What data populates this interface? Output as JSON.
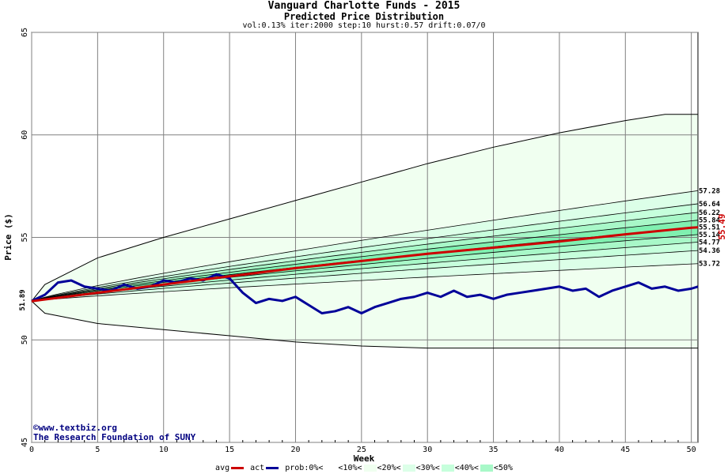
{
  "header": {
    "title": "Vanguard Charlotte Funds - 2015",
    "subtitle": "Predicted Price Distribution",
    "params": "vol:0.13% iter:2000 step:10 hurst:0.57 drift:0.07/0"
  },
  "credits": {
    "line1": "©www.textbiz.org",
    "line2": "The Research Foundation of SUNY"
  },
  "legend": {
    "avg": "avg",
    "act": "act",
    "prob": "prob:",
    "bands": [
      "0%<",
      "<10%<",
      "<20%<",
      "<30%<",
      "<40%<",
      "<50%"
    ]
  },
  "colors": {
    "avg": "#cc0000",
    "act": "#000099",
    "bands": [
      "#ffffff",
      "#f0fff0",
      "#dcffe8",
      "#c6ffdc",
      "#a8f8c8",
      "#80f0b0"
    ],
    "grid": "#808080"
  },
  "chart_data": {
    "type": "line",
    "title": "Vanguard Charlotte Funds - 2015",
    "subtitle": "Predicted Price Distribution",
    "xlabel": "Week",
    "ylabel": "Price ($)",
    "xlim": [
      0,
      50.5
    ],
    "ylim": [
      45,
      65
    ],
    "x_ticks": [
      0,
      5,
      10,
      15,
      20,
      25,
      30,
      35,
      40,
      45,
      50
    ],
    "y_ticks": [
      45,
      50,
      55,
      60,
      65
    ],
    "grid": true,
    "start_value": "51.89",
    "end_avg_value": "55.49",
    "envelope": {
      "x": [
        0,
        1,
        5,
        10,
        15,
        20,
        25,
        30,
        35,
        40,
        45,
        48,
        50.5
      ],
      "upper": [
        51.89,
        52.7,
        54.0,
        55.0,
        55.9,
        56.8,
        57.7,
        58.6,
        59.4,
        60.1,
        60.7,
        61.0,
        61.0
      ],
      "lower": [
        51.89,
        51.3,
        50.8,
        50.5,
        50.2,
        49.9,
        49.7,
        49.6,
        49.6,
        49.6,
        49.6,
        49.6,
        49.6
      ]
    },
    "percentile_end_labels": [
      "57.28",
      "56.64",
      "56.22",
      "55.84",
      "55.51",
      "55.14",
      "54.77",
      "54.36",
      "53.72"
    ],
    "percentile_curves": [
      {
        "end": 57.28
      },
      {
        "end": 56.64
      },
      {
        "end": 56.22
      },
      {
        "end": 55.84
      },
      {
        "end": 55.51
      },
      {
        "end": 55.14
      },
      {
        "end": 54.77
      },
      {
        "end": 54.36
      },
      {
        "end": 53.72
      }
    ],
    "series": [
      {
        "name": "avg",
        "x": [
          0,
          5,
          10,
          15,
          20,
          25,
          30,
          35,
          40,
          45,
          50,
          50.5
        ],
        "y": [
          51.89,
          52.3,
          52.7,
          53.1,
          53.5,
          53.85,
          54.2,
          54.5,
          54.8,
          55.15,
          55.47,
          55.49
        ]
      },
      {
        "name": "act",
        "x": [
          0,
          1,
          2,
          3,
          4,
          5,
          6,
          7,
          8,
          9,
          10,
          11,
          12,
          13,
          14,
          15,
          16,
          17,
          18,
          19,
          20,
          21,
          22,
          23,
          24,
          25,
          26,
          27,
          28,
          29,
          30,
          31,
          32,
          33,
          34,
          35,
          36,
          37,
          38,
          39,
          40,
          41,
          42,
          43,
          44,
          45,
          46,
          47,
          48,
          49,
          50,
          50.5
        ],
        "y": [
          51.9,
          52.2,
          52.8,
          52.9,
          52.6,
          52.5,
          52.4,
          52.7,
          52.5,
          52.6,
          52.9,
          52.8,
          53.0,
          52.9,
          53.2,
          53.0,
          52.3,
          51.8,
          52.0,
          51.9,
          52.1,
          51.7,
          51.3,
          51.4,
          51.6,
          51.3,
          51.6,
          51.8,
          52.0,
          52.1,
          52.3,
          52.1,
          52.4,
          52.1,
          52.2,
          52.0,
          52.2,
          52.3,
          52.4,
          52.5,
          52.6,
          52.4,
          52.5,
          52.1,
          52.4,
          52.6,
          52.8,
          52.5,
          52.6,
          52.4,
          52.5,
          52.6
        ]
      }
    ]
  }
}
